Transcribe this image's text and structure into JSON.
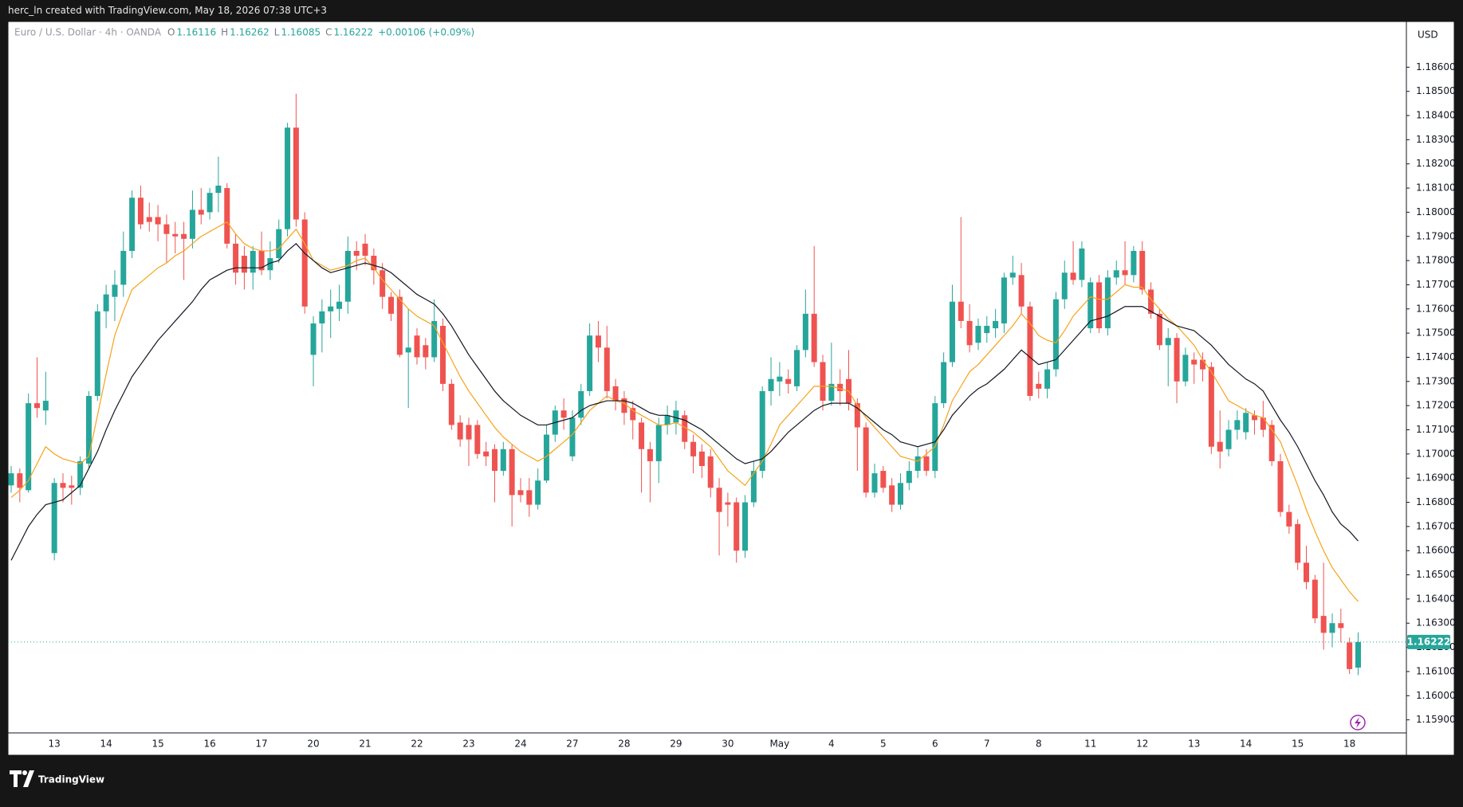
{
  "header": "herc_ln created with TradingView.com, May 18, 2026 07:38 UTC+3",
  "brand": "TradingView",
  "chart_data": {
    "type": "candlestick",
    "title": "Euro / U.S. Dollar · 4h · OANDA",
    "legend_letters": [
      "O",
      "H",
      "L",
      "C"
    ],
    "change_label": "+0.00106 (+0.09%)",
    "currency": "USD",
    "up_color": "#26a69a",
    "down_color": "#ef5350",
    "grid": false,
    "categories": [
      null,
      null,
      null,
      null,
      null,
      "13",
      null,
      null,
      null,
      null,
      null,
      "14",
      null,
      null,
      null,
      null,
      null,
      "15",
      null,
      null,
      null,
      null,
      null,
      "16",
      null,
      null,
      null,
      null,
      null,
      "17",
      null,
      null,
      null,
      null,
      null,
      "20",
      null,
      null,
      null,
      null,
      null,
      "21",
      null,
      null,
      null,
      null,
      null,
      "22",
      null,
      null,
      null,
      null,
      null,
      "23",
      null,
      null,
      null,
      null,
      null,
      "24",
      null,
      null,
      null,
      null,
      null,
      "27",
      null,
      null,
      null,
      null,
      null,
      "28",
      null,
      null,
      null,
      null,
      null,
      "29",
      null,
      null,
      null,
      null,
      null,
      "30",
      null,
      null,
      null,
      null,
      null,
      "May",
      null,
      null,
      null,
      null,
      null,
      "4",
      null,
      null,
      null,
      null,
      null,
      "5",
      null,
      null,
      null,
      null,
      null,
      "6",
      null,
      null,
      null,
      null,
      null,
      "7",
      null,
      null,
      null,
      null,
      null,
      "8",
      null,
      null,
      null,
      null,
      null,
      "11",
      null,
      null,
      null,
      null,
      null,
      "12",
      null,
      null,
      null,
      null,
      null,
      "13",
      null,
      null,
      null,
      null,
      null,
      "14",
      null,
      null,
      null,
      null,
      null,
      "15",
      null,
      null,
      null,
      null,
      null,
      "18",
      null
    ],
    "open": [
      1.1687,
      1.1692,
      1.1685,
      1.1721,
      1.1718,
      1.1659,
      1.1688,
      1.1687,
      1.1686,
      1.1696,
      1.1724,
      1.1759,
      1.1765,
      1.177,
      1.1784,
      1.1806,
      1.1798,
      1.1798,
      1.1795,
      1.1791,
      1.1791,
      1.1789,
      1.1801,
      1.18,
      1.1808,
      1.181,
      1.1787,
      1.1782,
      1.1775,
      1.1784,
      1.1776,
      1.1781,
      1.1793,
      1.1835,
      1.1797,
      1.1741,
      1.1754,
      1.1759,
      1.176,
      1.1763,
      1.1784,
      1.1787,
      1.1782,
      1.1776,
      1.1765,
      1.1765,
      1.1742,
      1.1749,
      1.1745,
      1.174,
      1.1753,
      1.1729,
      1.1713,
      1.1712,
      1.1712,
      1.1701,
      1.1702,
      1.1693,
      1.1702,
      1.1685,
      1.1685,
      1.1679,
      1.1689,
      1.1708,
      1.1718,
      1.1699,
      1.1715,
      1.1726,
      1.1749,
      1.1744,
      1.1728,
      1.1723,
      1.1719,
      1.1713,
      1.1702,
      1.1697,
      1.1712,
      1.1713,
      1.1716,
      1.1705,
      1.1701,
      1.1699,
      1.1686,
      1.168,
      1.168,
      1.166,
      1.168,
      1.1693,
      1.1726,
      1.173,
      1.1731,
      1.1728,
      1.1743,
      1.1758,
      1.1738,
      1.1722,
      1.1729,
      1.1731,
      1.1721,
      1.1711,
      1.1684,
      1.1693,
      1.1687,
      1.1679,
      1.1688,
      1.1693,
      1.1699,
      1.1693,
      1.1721,
      1.1738,
      1.1763,
      1.1755,
      1.1746,
      1.175,
      1.1752,
      1.1754,
      1.1773,
      1.1774,
      1.1761,
      1.1729,
      1.1727,
      1.1735,
      1.1764,
      1.1775,
      1.1772,
      1.1752,
      1.1771,
      1.1752,
      1.1773,
      1.1776,
      1.1774,
      1.1784,
      1.1768,
      1.1758,
      1.1745,
      1.1748,
      1.173,
      1.1739,
      1.1739,
      1.1736,
      1.1705,
      1.1702,
      1.171,
      1.1709,
      1.1716,
      1.1715,
      1.1712,
      1.1697,
      1.1676,
      1.1671,
      1.1655,
      1.1648,
      1.1633,
      1.1626,
      1.163,
      1.1622,
      1.16116
    ],
    "high": [
      1.1695,
      1.1694,
      1.1725,
      1.174,
      1.1734,
      1.169,
      1.1692,
      1.1691,
      1.1699,
      1.1726,
      1.1762,
      1.177,
      1.1776,
      1.1792,
      1.1809,
      1.1811,
      1.1804,
      1.1803,
      1.1799,
      1.1796,
      1.1796,
      1.1809,
      1.181,
      1.181,
      1.1823,
      1.1812,
      1.1791,
      1.1786,
      1.1786,
      1.1792,
      1.1788,
      1.1797,
      1.1837,
      1.1849,
      1.18,
      1.1757,
      1.1764,
      1.1768,
      1.177,
      1.179,
      1.1788,
      1.1791,
      1.1785,
      1.1779,
      1.1767,
      1.1768,
      1.176,
      1.1752,
      1.1748,
      1.1764,
      1.1756,
      1.1731,
      1.1716,
      1.1715,
      1.1714,
      1.1705,
      1.1704,
      1.1705,
      1.1704,
      1.169,
      1.169,
      1.1694,
      1.1712,
      1.172,
      1.1723,
      1.1718,
      1.1729,
      1.1754,
      1.1755,
      1.1753,
      1.1731,
      1.1726,
      1.1722,
      1.1715,
      1.1705,
      1.1715,
      1.172,
      1.1722,
      1.1718,
      1.1708,
      1.1704,
      1.1702,
      1.169,
      1.1684,
      1.1682,
      1.1683,
      1.1697,
      1.1728,
      1.174,
      1.1738,
      1.1735,
      1.1745,
      1.1768,
      1.1786,
      1.1741,
      1.1746,
      1.1735,
      1.1743,
      1.1723,
      1.1713,
      1.1696,
      1.1695,
      1.169,
      1.1692,
      1.1697,
      1.1703,
      1.1702,
      1.1724,
      1.1742,
      1.177,
      1.1798,
      1.1762,
      1.1756,
      1.1757,
      1.176,
      1.1775,
      1.1782,
      1.1779,
      1.1763,
      1.1734,
      1.1738,
      1.1767,
      1.178,
      1.1788,
      1.1788,
      1.1773,
      1.1774,
      1.1776,
      1.178,
      1.1788,
      1.1786,
      1.1788,
      1.1771,
      1.176,
      1.1752,
      1.175,
      1.1744,
      1.1742,
      1.1742,
      1.1738,
      1.1718,
      1.1714,
      1.1718,
      1.1719,
      1.1718,
      1.1722,
      1.1714,
      1.17,
      1.1679,
      1.1673,
      1.1662,
      1.165,
      1.1655,
      1.1634,
      1.1636,
      1.1624,
      1.16262
    ],
    "low": [
      1.1684,
      1.168,
      1.1684,
      1.1715,
      1.1712,
      1.1656,
      1.168,
      1.1679,
      1.1683,
      1.1694,
      1.1722,
      1.1752,
      1.1755,
      1.1765,
      1.1781,
      1.1793,
      1.1792,
      1.1788,
      1.1779,
      1.1783,
      1.1772,
      1.1785,
      1.1795,
      1.1797,
      1.18,
      1.1785,
      1.177,
      1.1768,
      1.1768,
      1.1774,
      1.1772,
      1.1779,
      1.179,
      1.1794,
      1.1758,
      1.1728,
      1.1742,
      1.1748,
      1.1755,
      1.1758,
      1.1776,
      1.1778,
      1.177,
      1.176,
      1.1755,
      1.174,
      1.1719,
      1.1737,
      1.1735,
      1.1738,
      1.1726,
      1.171,
      1.1703,
      1.1695,
      1.1698,
      1.1695,
      1.168,
      1.1691,
      1.167,
      1.168,
      1.1674,
      1.1677,
      1.1688,
      1.1705,
      1.171,
      1.1697,
      1.1712,
      1.1724,
      1.1738,
      1.1723,
      1.1718,
      1.1712,
      1.1706,
      1.1684,
      1.168,
      1.1688,
      1.1708,
      1.1708,
      1.1702,
      1.1692,
      1.169,
      1.1682,
      1.1658,
      1.167,
      1.1655,
      1.1657,
      1.1678,
      1.169,
      1.172,
      1.1724,
      1.1725,
      1.1726,
      1.174,
      1.1736,
      1.1718,
      1.172,
      1.172,
      1.1718,
      1.1693,
      1.1682,
      1.1682,
      1.1684,
      1.1676,
      1.1677,
      1.1685,
      1.169,
      1.1691,
      1.169,
      1.1719,
      1.1736,
      1.1752,
      1.1742,
      1.1743,
      1.1746,
      1.1748,
      1.175,
      1.177,
      1.1758,
      1.1722,
      1.1723,
      1.1723,
      1.1732,
      1.176,
      1.177,
      1.1769,
      1.175,
      1.175,
      1.1749,
      1.177,
      1.177,
      1.1771,
      1.1766,
      1.1756,
      1.1743,
      1.1728,
      1.1721,
      1.1728,
      1.1729,
      1.173,
      1.17,
      1.1694,
      1.1699,
      1.1706,
      1.1706,
      1.1708,
      1.1707,
      1.1695,
      1.1674,
      1.1667,
      1.1652,
      1.1644,
      1.163,
      1.1619,
      1.162,
      1.1622,
      1.1609,
      1.16085
    ],
    "close": [
      1.1692,
      1.1686,
      1.1721,
      1.1719,
      1.1722,
      1.1688,
      1.1686,
      1.1686,
      1.1697,
      1.1724,
      1.1759,
      1.1766,
      1.177,
      1.1784,
      1.1806,
      1.1795,
      1.1796,
      1.1795,
      1.1791,
      1.179,
      1.1789,
      1.1801,
      1.1799,
      1.1808,
      1.1811,
      1.1787,
      1.1775,
      1.1775,
      1.1784,
      1.1776,
      1.1781,
      1.1793,
      1.1835,
      1.1797,
      1.1761,
      1.1754,
      1.1759,
      1.1761,
      1.1763,
      1.1784,
      1.1782,
      1.1782,
      1.1776,
      1.1765,
      1.1758,
      1.1741,
      1.1744,
      1.174,
      1.174,
      1.1755,
      1.1729,
      1.1712,
      1.1706,
      1.1706,
      1.17,
      1.1699,
      1.1693,
      1.1702,
      1.1683,
      1.1683,
      1.1679,
      1.1689,
      1.1708,
      1.1718,
      1.1715,
      1.1715,
      1.1726,
      1.1749,
      1.1744,
      1.1726,
      1.1722,
      1.1717,
      1.1714,
      1.1702,
      1.1697,
      1.1712,
      1.1716,
      1.1718,
      1.1705,
      1.1699,
      1.1695,
      1.1686,
      1.1676,
      1.1679,
      1.166,
      1.168,
      1.1693,
      1.1726,
      1.1731,
      1.1732,
      1.1729,
      1.1743,
      1.1758,
      1.1738,
      1.1722,
      1.1729,
      1.1726,
      1.1721,
      1.1711,
      1.1684,
      1.1692,
      1.1686,
      1.1679,
      1.1688,
      1.1693,
      1.1699,
      1.1693,
      1.1721,
      1.1738,
      1.1763,
      1.1755,
      1.1745,
      1.1753,
      1.1753,
      1.1755,
      1.1773,
      1.1775,
      1.1761,
      1.1724,
      1.1727,
      1.1735,
      1.1764,
      1.1775,
      1.1772,
      1.1785,
      1.1771,
      1.1752,
      1.1773,
      1.1776,
      1.1774,
      1.1784,
      1.1768,
      1.1758,
      1.1745,
      1.1748,
      1.173,
      1.1741,
      1.1737,
      1.1735,
      1.1703,
      1.1701,
      1.171,
      1.1714,
      1.1717,
      1.1714,
      1.171,
      1.1697,
      1.1676,
      1.167,
      1.1655,
      1.1647,
      1.1632,
      1.1626,
      1.163,
      1.1628,
      1.1611,
      1.16222
    ],
    "series": [
      {
        "color": "#f7a21b",
        "values": [
          1.1682,
          1.1685,
          1.1689,
          1.1696,
          1.1703,
          1.17,
          1.1698,
          1.1697,
          1.1696,
          1.1699,
          1.1716,
          1.1733,
          1.1749,
          1.1759,
          1.1768,
          1.1771,
          1.1774,
          1.1777,
          1.1779,
          1.1782,
          1.1784,
          1.1787,
          1.179,
          1.1792,
          1.1794,
          1.1796,
          1.1791,
          1.1787,
          1.1785,
          1.1784,
          1.1784,
          1.1785,
          1.1789,
          1.1793,
          1.1787,
          1.178,
          1.1778,
          1.1776,
          1.1777,
          1.1778,
          1.178,
          1.1781,
          1.1777,
          1.1772,
          1.1768,
          1.1764,
          1.176,
          1.1757,
          1.1755,
          1.1753,
          1.1746,
          1.1739,
          1.1732,
          1.1726,
          1.1721,
          1.1716,
          1.1711,
          1.1707,
          1.1704,
          1.1701,
          1.1699,
          1.1697,
          1.1699,
          1.1702,
          1.1705,
          1.1708,
          1.1713,
          1.1718,
          1.1721,
          1.1724,
          1.1722,
          1.1721,
          1.1718,
          1.1716,
          1.1714,
          1.1712,
          1.1712,
          1.1713,
          1.1711,
          1.1709,
          1.1706,
          1.1703,
          1.1698,
          1.1693,
          1.169,
          1.1687,
          1.1692,
          1.1697,
          1.1704,
          1.1712,
          1.1716,
          1.172,
          1.1724,
          1.1728,
          1.1728,
          1.1728,
          1.1727,
          1.1726,
          1.172,
          1.1715,
          1.1711,
          1.1707,
          1.1703,
          1.1699,
          1.1698,
          1.1697,
          1.17,
          1.1703,
          1.1712,
          1.1722,
          1.1728,
          1.1734,
          1.1737,
          1.1741,
          1.1745,
          1.1749,
          1.1753,
          1.1758,
          1.1754,
          1.1749,
          1.1747,
          1.1746,
          1.1751,
          1.1757,
          1.1761,
          1.1765,
          1.1764,
          1.1764,
          1.1767,
          1.177,
          1.1769,
          1.1769,
          1.1764,
          1.176,
          1.1756,
          1.1753,
          1.1749,
          1.1745,
          1.1739,
          1.1734,
          1.1728,
          1.1722,
          1.172,
          1.1718,
          1.1716,
          1.1715,
          1.171,
          1.1705,
          1.1696,
          1.1687,
          1.1677,
          1.1668,
          1.166,
          1.1653,
          1.1648,
          1.1643,
          1.1639
        ]
      },
      {
        "color": "#131722",
        "values": [
          1.1656,
          1.1663,
          1.167,
          1.1675,
          1.1679,
          1.168,
          1.1681,
          1.1684,
          1.1687,
          1.1694,
          1.1701,
          1.171,
          1.1718,
          1.1725,
          1.1732,
          1.1737,
          1.1742,
          1.1747,
          1.1751,
          1.1755,
          1.1759,
          1.1763,
          1.1768,
          1.1772,
          1.1774,
          1.1776,
          1.1777,
          1.1777,
          1.1777,
          1.1777,
          1.1779,
          1.178,
          1.1784,
          1.1787,
          1.1783,
          1.178,
          1.1777,
          1.1775,
          1.1776,
          1.1777,
          1.1778,
          1.1779,
          1.1778,
          1.1777,
          1.1775,
          1.1772,
          1.1769,
          1.1766,
          1.1764,
          1.1762,
          1.1758,
          1.1753,
          1.1747,
          1.1741,
          1.1736,
          1.1731,
          1.1726,
          1.1722,
          1.1719,
          1.1716,
          1.1714,
          1.1712,
          1.1712,
          1.1713,
          1.1714,
          1.1715,
          1.1718,
          1.172,
          1.1721,
          1.1722,
          1.1722,
          1.1722,
          1.1721,
          1.1719,
          1.1717,
          1.1716,
          1.1716,
          1.1715,
          1.1714,
          1.1712,
          1.171,
          1.1707,
          1.1704,
          1.1701,
          1.1698,
          1.1696,
          1.1697,
          1.1698,
          1.1701,
          1.1705,
          1.1709,
          1.1712,
          1.1715,
          1.1718,
          1.172,
          1.1721,
          1.1721,
          1.1721,
          1.1719,
          1.1716,
          1.1713,
          1.171,
          1.1708,
          1.1705,
          1.1704,
          1.1703,
          1.1704,
          1.1705,
          1.171,
          1.1716,
          1.172,
          1.1724,
          1.1727,
          1.1729,
          1.1732,
          1.1735,
          1.1739,
          1.1743,
          1.174,
          1.1737,
          1.1738,
          1.1739,
          1.1743,
          1.1747,
          1.1751,
          1.1755,
          1.1756,
          1.1757,
          1.1759,
          1.1761,
          1.1761,
          1.1761,
          1.1759,
          1.1757,
          1.1755,
          1.1753,
          1.1752,
          1.1751,
          1.1748,
          1.1745,
          1.1741,
          1.1737,
          1.1734,
          1.1731,
          1.1729,
          1.1726,
          1.172,
          1.1714,
          1.1709,
          1.1703,
          1.1696,
          1.1689,
          1.1683,
          1.1676,
          1.1671,
          1.1668,
          1.1664
        ]
      }
    ],
    "ylim": [
      1.15846,
      1.18789
    ],
    "yticks": [
      {
        "value": 1.159,
        "label": "1.15900"
      },
      {
        "value": 1.16,
        "label": "1.16000"
      },
      {
        "value": 1.161,
        "label": "1.16100"
      },
      {
        "value": 1.162,
        "label": "1.16200"
      },
      {
        "value": 1.163,
        "label": "1.16300"
      },
      {
        "value": 1.164,
        "label": "1.16400"
      },
      {
        "value": 1.165,
        "label": "1.16500"
      },
      {
        "value": 1.166,
        "label": "1.16600"
      },
      {
        "value": 1.167,
        "label": "1.16700"
      },
      {
        "value": 1.168,
        "label": "1.16800"
      },
      {
        "value": 1.169,
        "label": "1.16900"
      },
      {
        "value": 1.17,
        "label": "1.17000"
      },
      {
        "value": 1.171,
        "label": "1.17100"
      },
      {
        "value": 1.172,
        "label": "1.17200"
      },
      {
        "value": 1.173,
        "label": "1.17300"
      },
      {
        "value": 1.174,
        "label": "1.17400"
      },
      {
        "value": 1.175,
        "label": "1.17500"
      },
      {
        "value": 1.176,
        "label": "1.17600"
      },
      {
        "value": 1.177,
        "label": "1.17700"
      },
      {
        "value": 1.178,
        "label": "1.17800"
      },
      {
        "value": 1.179,
        "label": "1.17900"
      },
      {
        "value": 1.18,
        "label": "1.18000"
      },
      {
        "value": 1.181,
        "label": "1.18100"
      },
      {
        "value": 1.182,
        "label": "1.18200"
      },
      {
        "value": 1.183,
        "label": "1.18300"
      },
      {
        "value": 1.184,
        "label": "1.18400"
      },
      {
        "value": 1.185,
        "label": "1.18500"
      },
      {
        "value": 1.186,
        "label": "1.18600"
      }
    ]
  }
}
